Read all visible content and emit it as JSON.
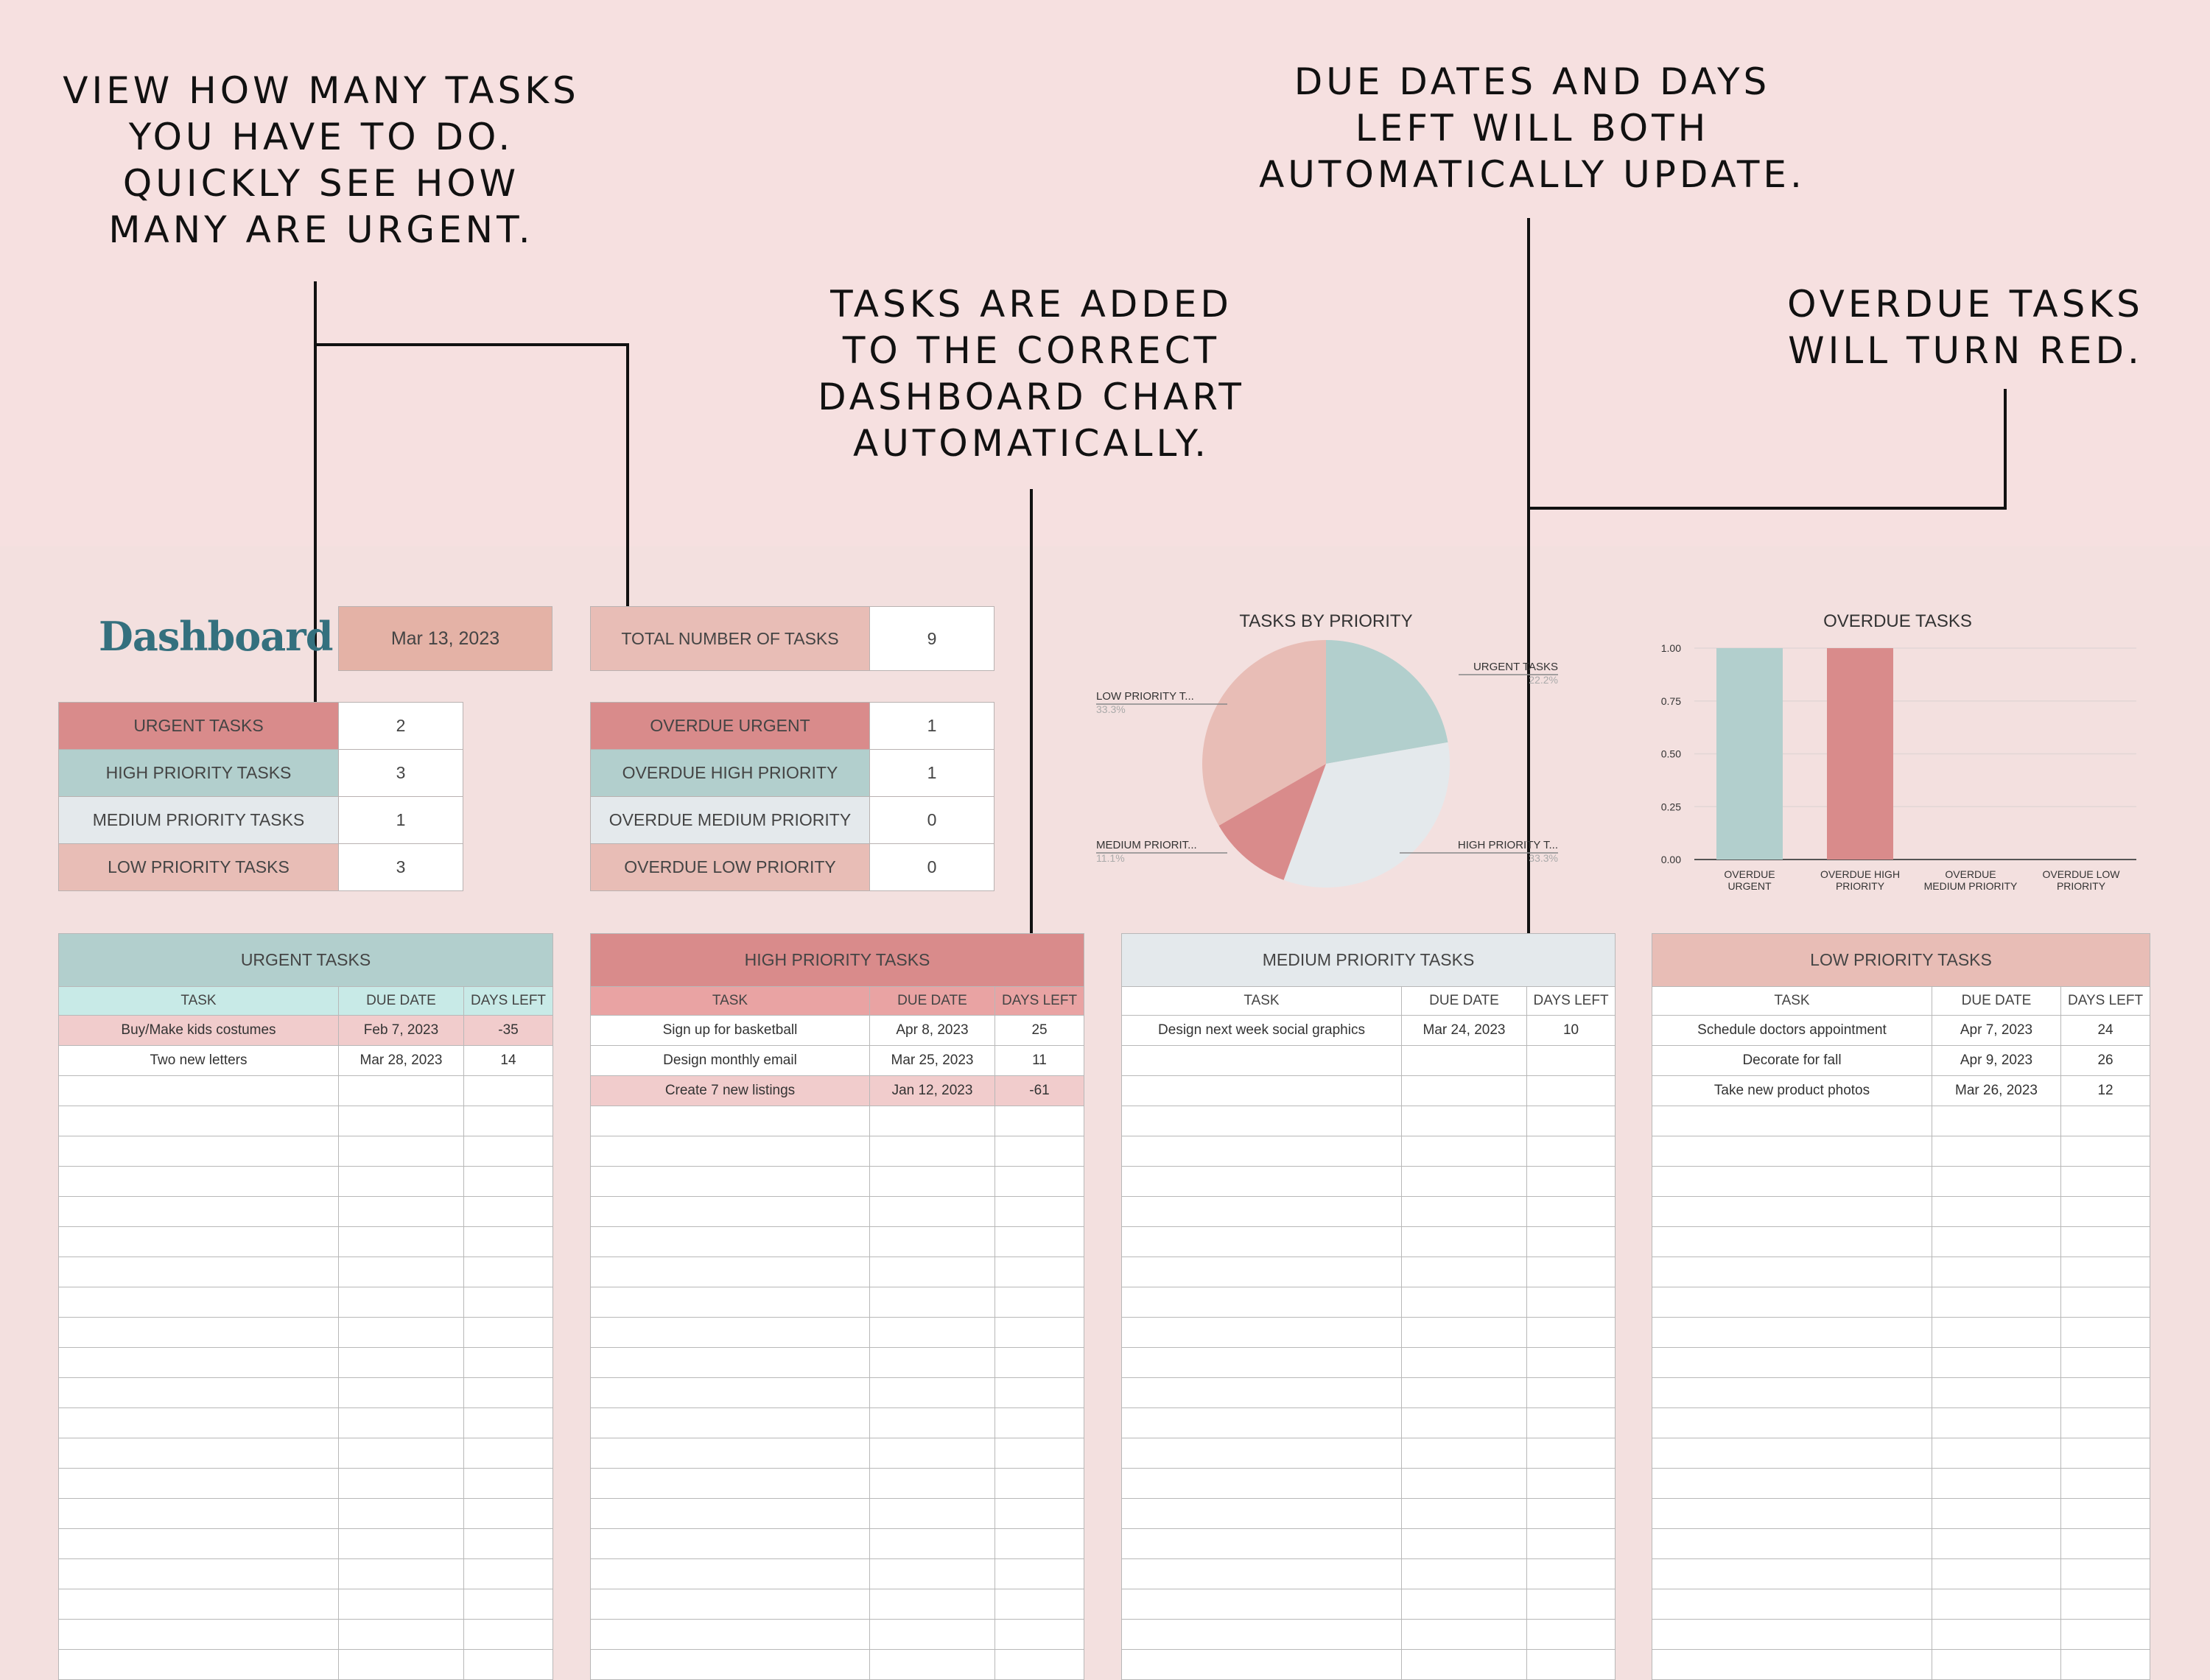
{
  "callouts": {
    "tasks_count": [
      "VIEW HOW MANY TASKS",
      "YOU HAVE TO DO.",
      "QUICKLY SEE HOW",
      "MANY ARE URGENT."
    ],
    "auto_chart": [
      "TASKS ARE ADDED",
      "TO THE CORRECT",
      "DASHBOARD CHART",
      "AUTOMATICALLY."
    ],
    "due_dates": [
      "DUE DATES AND DAYS",
      "LEFT WILL BOTH",
      "AUTOMATICALLY UPDATE."
    ],
    "overdue": [
      "OVERDUE TASKS",
      "WILL TURN RED."
    ]
  },
  "dashboard": {
    "title": "Dashboard",
    "date": "Mar 13, 2023",
    "total_label": "TOTAL NUMBER OF TASKS",
    "total_value": "9",
    "priority_counts": [
      {
        "label": "URGENT TASKS",
        "value": "2"
      },
      {
        "label": "HIGH PRIORITY TASKS",
        "value": "3"
      },
      {
        "label": "MEDIUM PRIORITY TASKS",
        "value": "1"
      },
      {
        "label": "LOW PRIORITY TASKS",
        "value": "3"
      }
    ],
    "overdue_counts": [
      {
        "label": "OVERDUE URGENT",
        "value": "1"
      },
      {
        "label": "OVERDUE HIGH PRIORITY",
        "value": "1"
      },
      {
        "label": "OVERDUE MEDIUM PRIORITY",
        "value": "0"
      },
      {
        "label": "OVERDUE LOW PRIORITY",
        "value": "0"
      }
    ]
  },
  "colors": {
    "urgent": "#d98b8b",
    "high": "#b2cfcd",
    "medium": "#e4e9ec",
    "low": "#e8bdb6",
    "pie_urgent": "#b2cfcd",
    "pie_high": "#e4e9ec",
    "pie_medium": "#d98b8b",
    "pie_low": "#e8bdb6",
    "title_text": "#34707e"
  },
  "chart_data": [
    {
      "type": "pie",
      "title": "TASKS BY PRIORITY",
      "labels": [
        "URGENT TASKS",
        "HIGH PRIORITY T...",
        "MEDIUM PRIORIT...",
        "LOW PRIORITY T..."
      ],
      "values": [
        22.2,
        33.3,
        11.1,
        33.3
      ],
      "percent_labels": [
        "22.2%",
        "33.3%",
        "11.1%",
        "33.3%"
      ]
    },
    {
      "type": "bar",
      "title": "OVERDUE TASKS",
      "categories": [
        [
          "OVERDUE",
          "URGENT"
        ],
        [
          "OVERDUE HIGH",
          "PRIORITY"
        ],
        [
          "OVERDUE",
          "MEDIUM PRIORITY"
        ],
        [
          "OVERDUE LOW",
          "PRIORITY"
        ]
      ],
      "values": [
        1,
        1,
        0,
        0
      ],
      "yticks": [
        "0.00",
        "0.25",
        "0.50",
        "0.75",
        "1.00"
      ],
      "ylim": [
        0,
        1
      ],
      "grid": true
    }
  ],
  "task_headers": {
    "task": "TASK",
    "due": "DUE DATE",
    "days": "DAYS LEFT"
  },
  "tables": [
    {
      "title": "URGENT TASKS",
      "rows": [
        {
          "task": "Buy/Make kids costumes",
          "due": "Feb 7, 2023",
          "days": "-35",
          "overdue": true
        },
        {
          "task": "Two new letters",
          "due": "Mar 28, 2023",
          "days": "14",
          "overdue": false
        }
      ]
    },
    {
      "title": "HIGH PRIORITY TASKS",
      "rows": [
        {
          "task": "Sign up for basketball",
          "due": "Apr 8, 2023",
          "days": "25",
          "overdue": false
        },
        {
          "task": "Design monthly email",
          "due": "Mar 25, 2023",
          "days": "11",
          "overdue": false
        },
        {
          "task": "Create 7 new listings",
          "due": "Jan 12, 2023",
          "days": "-61",
          "overdue": true
        }
      ]
    },
    {
      "title": "MEDIUM PRIORITY TASKS",
      "rows": [
        {
          "task": "Design next week social graphics",
          "due": "Mar 24, 2023",
          "days": "10",
          "overdue": false
        }
      ]
    },
    {
      "title": "LOW PRIORITY TASKS",
      "rows": [
        {
          "task": "Schedule doctors appointment",
          "due": "Apr 7, 2023",
          "days": "24",
          "overdue": false
        },
        {
          "task": "Decorate for fall",
          "due": "Apr 9, 2023",
          "days": "26",
          "overdue": false
        },
        {
          "task": "Take new product photos",
          "due": "Mar 26, 2023",
          "days": "12",
          "overdue": false
        }
      ]
    }
  ]
}
